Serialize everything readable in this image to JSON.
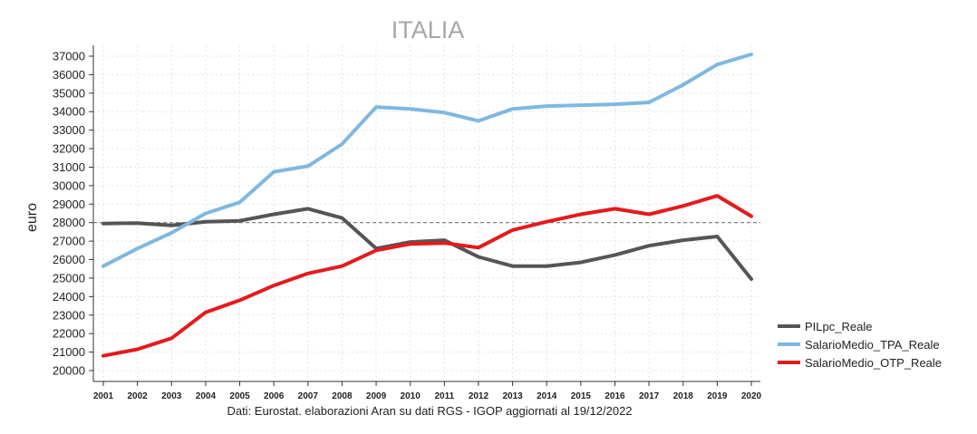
{
  "chart_data": {
    "type": "line",
    "title": "ITALIA",
    "xlabel": "",
    "ylabel": "euro",
    "note": "Dati: Eurostat. elaborazioni Aran su dati RGS - IGOP aggiornati al 19/12/2022",
    "x": [
      "2001",
      "2002",
      "2003",
      "2004",
      "2005",
      "2006",
      "2007",
      "2008",
      "2009",
      "2010",
      "2011",
      "2012",
      "2013",
      "2014",
      "2015",
      "2016",
      "2017",
      "2018",
      "2019",
      "2020"
    ],
    "yticks": [
      20000,
      21000,
      22000,
      23000,
      24000,
      25000,
      26000,
      27000,
      28000,
      29000,
      30000,
      31000,
      32000,
      33000,
      34000,
      35000,
      36000,
      37000
    ],
    "ylim": [
      20000,
      37000
    ],
    "grid": true,
    "reference_line": 28000,
    "legend_position": "right",
    "series": [
      {
        "name": "PILpc_Reale",
        "color": "#555555",
        "values": [
          27950,
          27970,
          27850,
          28050,
          28100,
          28450,
          28750,
          28250,
          26600,
          26950,
          27050,
          26150,
          25650,
          25650,
          25850,
          26250,
          26750,
          27050,
          27250,
          24950
        ]
      },
      {
        "name": "SalarioMedio_TPA_Reale",
        "color": "#7fb8e0",
        "values": [
          25650,
          26600,
          27450,
          28500,
          29100,
          30750,
          31050,
          32250,
          34250,
          34150,
          33950,
          33500,
          34150,
          34300,
          34350,
          34400,
          34500,
          35450,
          36550,
          37100
        ]
      },
      {
        "name": "SalarioMedio_OTP_Reale",
        "color": "#e41a1c",
        "values": [
          20800,
          21150,
          21750,
          23150,
          23800,
          24600,
          25250,
          25650,
          26500,
          26850,
          26900,
          26650,
          27600,
          28050,
          28450,
          28750,
          28450,
          28900,
          29450,
          28350
        ]
      }
    ]
  }
}
